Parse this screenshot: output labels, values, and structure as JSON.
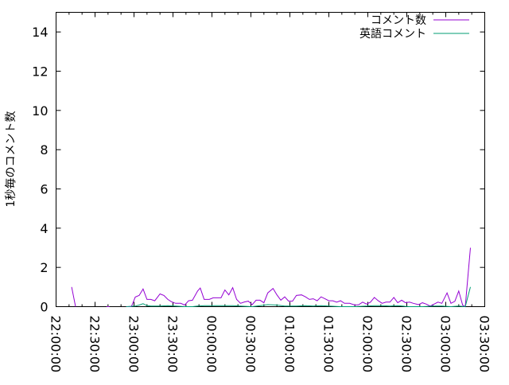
{
  "chart_data": {
    "type": "line",
    "title": "",
    "xlabel": "",
    "ylabel": "1秒毎のコメント数",
    "xlim": [
      "22:00:00",
      "03:30:00"
    ],
    "ylim": [
      0,
      15
    ],
    "x_ticks": [
      "22:00:00",
      "22:30:00",
      "23:00:00",
      "23:30:00",
      "00:00:00",
      "00:30:00",
      "01:00:00",
      "01:30:00",
      "02:00:00",
      "02:30:00",
      "03:00:00",
      "03:30:00"
    ],
    "y_ticks": [
      "0",
      "2",
      "4",
      "6",
      "8",
      "10",
      "12",
      "14"
    ],
    "grid": false,
    "legend": "top-right",
    "series": [
      {
        "name": "コメント数",
        "color": "#9400d3",
        "points": [
          [
            "22:12",
            1.0
          ],
          [
            "22:15",
            0
          ],
          null,
          [
            "22:39",
            0
          ],
          [
            "22:41",
            0
          ],
          null,
          [
            "22:54",
            0
          ],
          [
            "22:58",
            0
          ],
          [
            "23:01",
            0.49
          ],
          [
            "23:04",
            0.57
          ],
          [
            "23:07",
            0.9
          ],
          [
            "23:10",
            0.37
          ],
          [
            "23:13",
            0.37
          ],
          [
            "23:16",
            0.3
          ],
          [
            "23:20",
            0.65
          ],
          [
            "23:23",
            0.57
          ],
          [
            "23:26",
            0.37
          ],
          [
            "23:29",
            0.24
          ],
          [
            "23:32",
            0.17
          ],
          [
            "23:36",
            0.17
          ],
          [
            "23:39",
            0.08
          ],
          [
            "23:42",
            0.3
          ],
          [
            "23:45",
            0.33
          ],
          [
            "23:49",
            0.8
          ],
          [
            "23:51",
            0.95
          ],
          [
            "23:54",
            0.37
          ],
          [
            "23:58",
            0.37
          ],
          [
            "00:01",
            0.45
          ],
          [
            "00:07",
            0.45
          ],
          [
            "00:10",
            0.85
          ],
          [
            "00:13",
            0.6
          ],
          [
            "00:16",
            0.97
          ],
          [
            "00:19",
            0.37
          ],
          [
            "00:22",
            0.17
          ],
          [
            "00:25",
            0.24
          ],
          [
            "00:28",
            0.28
          ],
          [
            "00:31",
            0.1
          ],
          [
            "00:34",
            0.33
          ],
          [
            "00:37",
            0.33
          ],
          [
            "00:40",
            0.2
          ],
          [
            "00:43",
            0.7
          ],
          [
            "00:47",
            0.93
          ],
          [
            "00:50",
            0.6
          ],
          [
            "00:53",
            0.33
          ],
          [
            "00:56",
            0.5
          ],
          [
            "00:59",
            0.28
          ],
          [
            "01:02",
            0.28
          ],
          [
            "01:05",
            0.57
          ],
          [
            "01:09",
            0.6
          ],
          [
            "01:12",
            0.5
          ],
          [
            "01:15",
            0.37
          ],
          [
            "01:18",
            0.4
          ],
          [
            "01:21",
            0.3
          ],
          [
            "01:24",
            0.5
          ],
          [
            "01:27",
            0.4
          ],
          [
            "01:30",
            0.3
          ],
          [
            "01:33",
            0.3
          ],
          [
            "01:36",
            0.23
          ],
          [
            "01:39",
            0.3
          ],
          [
            "01:42",
            0.17
          ],
          [
            "01:46",
            0.17
          ],
          [
            "01:50",
            0.08
          ],
          [
            "01:53",
            0.1
          ],
          [
            "01:56",
            0.23
          ],
          [
            "01:59",
            0.13
          ],
          [
            "02:02",
            0.23
          ],
          [
            "02:05",
            0.47
          ],
          [
            "02:08",
            0.3
          ],
          [
            "02:11",
            0.17
          ],
          [
            "02:14",
            0.23
          ],
          [
            "02:17",
            0.23
          ],
          [
            "02:20",
            0.47
          ],
          [
            "02:23",
            0.2
          ],
          [
            "02:26",
            0.33
          ],
          [
            "02:29",
            0.2
          ],
          [
            "02:32",
            0.23
          ],
          [
            "02:35",
            0.17
          ],
          [
            "02:39",
            0.1
          ],
          [
            "02:42",
            0.2
          ],
          [
            "02:45",
            0.13
          ],
          [
            "02:48",
            0.03
          ],
          [
            "02:51",
            0.13
          ],
          [
            "02:54",
            0.23
          ],
          [
            "02:57",
            0.17
          ],
          [
            "03:01",
            0.7
          ],
          [
            "03:04",
            0.17
          ],
          [
            "03:07",
            0.27
          ],
          [
            "03:10",
            0.8
          ],
          [
            "03:13",
            0.08
          ],
          [
            "03:15",
            0
          ],
          [
            "03:19",
            3.0
          ]
        ]
      },
      {
        "name": "英語コメント",
        "color": "#009e73",
        "points": [
          [
            "22:54",
            0
          ],
          [
            "23:01",
            0.03
          ],
          [
            "23:04",
            0.08
          ],
          [
            "23:07",
            0.15
          ],
          [
            "23:10",
            0.05
          ],
          [
            "23:13",
            0.03
          ],
          [
            "23:20",
            0.03
          ],
          [
            "23:26",
            0.05
          ],
          [
            "23:32",
            0.03
          ],
          [
            "23:39",
            0
          ],
          [
            "23:45",
            0
          ],
          [
            "23:49",
            0.03
          ],
          [
            "23:54",
            0.05
          ],
          [
            "00:01",
            0.05
          ],
          [
            "00:10",
            0.05
          ],
          [
            "00:16",
            0.05
          ],
          [
            "00:22",
            0.03
          ],
          [
            "00:31",
            0
          ],
          [
            "00:37",
            0.05
          ],
          [
            "00:43",
            0.1
          ],
          [
            "00:50",
            0.08
          ],
          [
            "00:56",
            0.03
          ],
          [
            "01:05",
            0.03
          ],
          [
            "01:12",
            0.05
          ],
          [
            "01:18",
            0.03
          ],
          [
            "01:24",
            0.05
          ],
          [
            "01:30",
            0.03
          ],
          [
            "01:39",
            0
          ],
          [
            "01:50",
            0
          ],
          [
            "01:59",
            0.03
          ],
          [
            "02:05",
            0.05
          ],
          [
            "02:11",
            0.05
          ],
          [
            "02:17",
            0.03
          ],
          [
            "02:23",
            0.05
          ],
          [
            "02:32",
            0
          ],
          [
            "02:42",
            0
          ],
          [
            "02:51",
            0.03
          ],
          [
            "02:57",
            0.03
          ],
          [
            "03:04",
            0
          ],
          [
            "03:10",
            0.03
          ],
          [
            "03:15",
            0
          ],
          [
            "03:19",
            1.0
          ]
        ]
      }
    ]
  }
}
